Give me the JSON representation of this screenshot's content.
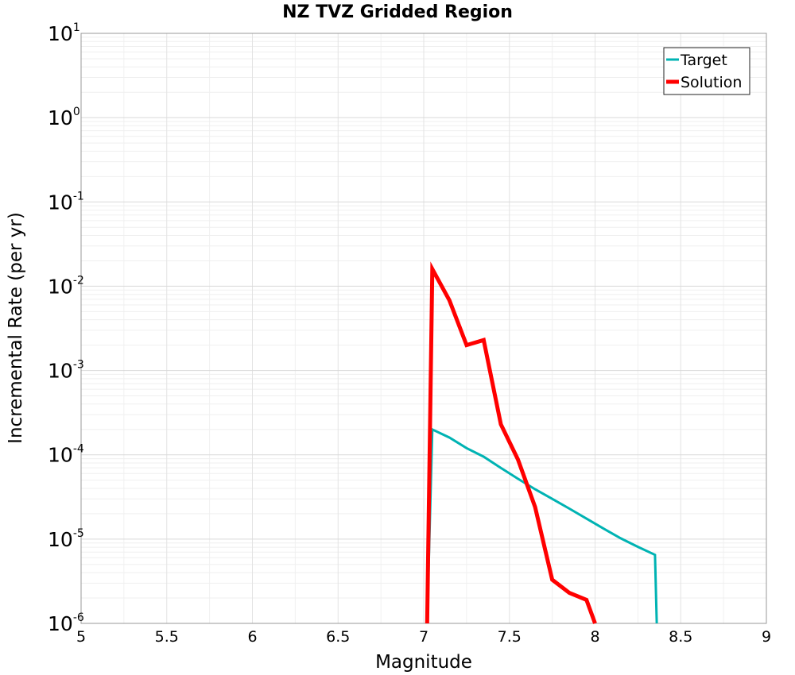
{
  "chart_data": {
    "type": "line",
    "title": "NZ TVZ Gridded Region",
    "xlabel": "Magnitude",
    "ylabel": "Incremental Rate (per yr)",
    "xlim": [
      5,
      9
    ],
    "ylim": [
      1e-06,
      10
    ],
    "yscale": "log",
    "grid": true,
    "legend_position": "top-right",
    "x_ticks": [
      "5",
      "5.5",
      "6",
      "6.5",
      "7",
      "7.5",
      "8",
      "8.5",
      "9"
    ],
    "y_ticks": [
      {
        "base": "10",
        "exp": "1"
      },
      {
        "base": "10",
        "exp": "0"
      },
      {
        "base": "10",
        "exp": "-1"
      },
      {
        "base": "10",
        "exp": "-2"
      },
      {
        "base": "10",
        "exp": "-3"
      },
      {
        "base": "10",
        "exp": "-4"
      },
      {
        "base": "10",
        "exp": "-5"
      },
      {
        "base": "10",
        "exp": "-6"
      }
    ],
    "series": [
      {
        "name": "Target",
        "color": "#00b3b3",
        "x": [
          7.02,
          7.05,
          7.15,
          7.25,
          7.35,
          7.45,
          7.55,
          7.65,
          7.75,
          7.85,
          7.95,
          8.05,
          8.15,
          8.25,
          8.35,
          8.36
        ],
        "y": [
          1e-06,
          0.0002,
          0.00016,
          0.00012,
          9.5e-05,
          7e-05,
          5.2e-05,
          3.9e-05,
          3e-05,
          2.3e-05,
          1.75e-05,
          1.33e-05,
          1.02e-05,
          8.1e-06,
          6.5e-06,
          1e-06
        ]
      },
      {
        "name": "Solution",
        "color": "#ff0000",
        "x": [
          7.02,
          7.05,
          7.15,
          7.25,
          7.35,
          7.45,
          7.55,
          7.65,
          7.75,
          7.85,
          7.95,
          8.0
        ],
        "y": [
          1e-06,
          0.016,
          0.0068,
          0.002,
          0.0023,
          0.00023,
          8.8e-05,
          2.4e-05,
          3.3e-06,
          2.3e-06,
          1.9e-06,
          1e-06
        ]
      }
    ]
  }
}
